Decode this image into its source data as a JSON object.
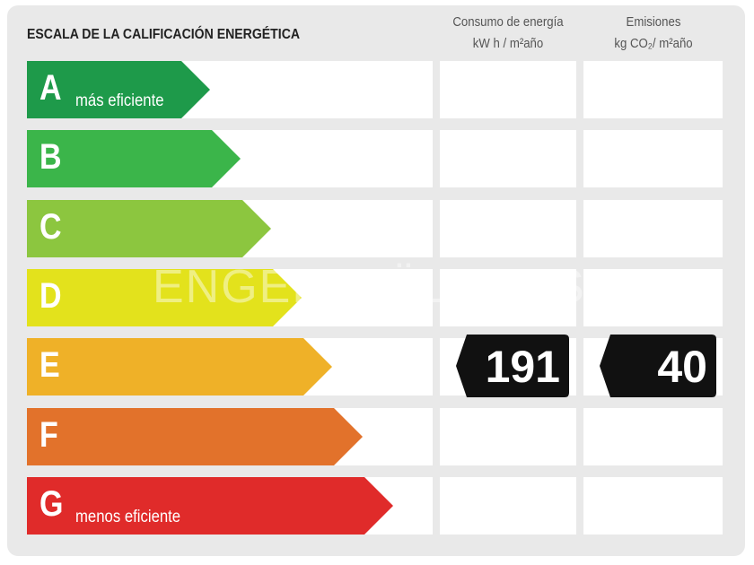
{
  "header": {
    "title": "ESCALA DE LA CALIFICACIÓN ENERGÉTICA"
  },
  "columns": [
    {
      "title": "Consumo de energía",
      "unit": "kW h / m²año"
    },
    {
      "title": "Emisiones",
      "unit": "kg CO₂/ m²año"
    }
  ],
  "rows": [
    {
      "letter": "A",
      "label": "más eficiente",
      "color": "#1e9a4a"
    },
    {
      "letter": "B",
      "color": "#3bb54a"
    },
    {
      "letter": "C",
      "color": "#8cc63f"
    },
    {
      "letter": "D",
      "color": "#e3e21c"
    },
    {
      "letter": "E",
      "color": "#efb128"
    },
    {
      "letter": "F",
      "color": "#e2722b"
    },
    {
      "letter": "G",
      "label": "menos eficiente",
      "color": "#e02b2a"
    }
  ],
  "rating": {
    "letter": "E",
    "values": [
      191,
      40
    ]
  },
  "watermark": "ENGEL&VÖLKERS"
}
